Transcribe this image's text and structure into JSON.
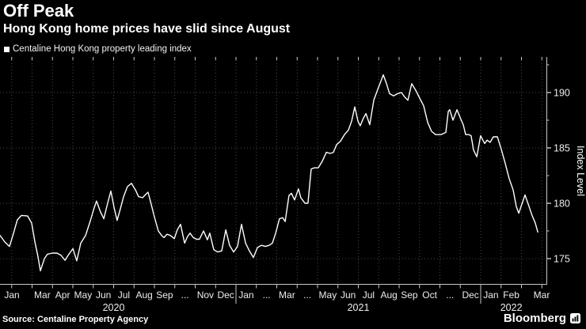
{
  "header": {
    "title": "Off Peak",
    "subtitle": "Hong Kong home prices have slid since August",
    "legend": {
      "marker_color": "#ffffff",
      "label": "Centaline Hong Kong property leading index"
    }
  },
  "footer": {
    "source": "Source: Centaline Property Agency",
    "brand": "Bloomberg",
    "brand_icon": "bar-chart-icon"
  },
  "colors": {
    "background": "#000000",
    "line": "#ffffff",
    "grid": "#4a4a4a",
    "axis": "#c8c8c8",
    "tick_label": "#ededed",
    "text": "#ffffff"
  },
  "chart_data": {
    "type": "line",
    "title": "Centaline Hong Kong property leading index",
    "xlabel": "",
    "ylabel": "Index Level",
    "x_unit": "months_since_Jan_2020_fractional",
    "xlim_months": [
      0,
      27
    ],
    "ylim": [
      172.7,
      193.2
    ],
    "y_ticks": [
      175,
      180,
      185,
      190
    ],
    "y_minor_ticks": [
      177.5,
      182.5,
      187.5,
      192.5
    ],
    "grid": "dotted",
    "legend_position": "top-left",
    "x_tick_labels": [
      "Jan",
      "",
      "Mar",
      "Apr",
      "May",
      "Jun",
      "Jul",
      "Aug",
      "Sep",
      "...",
      "Nov",
      "Dec",
      "Jan",
      "...",
      "Mar",
      "...",
      "May",
      "Jun",
      "Jul",
      "Aug",
      "Sep",
      "Oct",
      "...",
      "Dec",
      "Jan",
      "Feb",
      "Mar"
    ],
    "year_labels": [
      {
        "label": "2020",
        "center_month": 6
      },
      {
        "label": "2021",
        "center_month": 18
      },
      {
        "label": "2022",
        "center_month": 25.5
      }
    ],
    "year_divider_months": [
      12,
      24
    ],
    "series": [
      {
        "name": "Centaline Hong Kong property leading index",
        "color": "#ffffff",
        "points": [
          [
            0,
            177.1
          ],
          [
            0.24,
            176.5
          ],
          [
            0.47,
            176.1
          ],
          [
            0.67,
            177.3
          ],
          [
            0.86,
            178.5
          ],
          [
            1.06,
            178.9
          ],
          [
            1.37,
            178.85
          ],
          [
            1.57,
            178.2
          ],
          [
            1.73,
            176.5
          ],
          [
            1.88,
            175.2
          ],
          [
            2.0,
            173.9
          ],
          [
            2.2,
            175.0
          ],
          [
            2.35,
            175.4
          ],
          [
            2.59,
            175.5
          ],
          [
            2.82,
            175.5
          ],
          [
            3.02,
            175.3
          ],
          [
            3.22,
            174.85
          ],
          [
            3.41,
            175.4
          ],
          [
            3.61,
            175.9
          ],
          [
            3.8,
            174.8
          ],
          [
            4.0,
            176.4
          ],
          [
            4.24,
            177.1
          ],
          [
            4.47,
            178.4
          ],
          [
            4.63,
            179.4
          ],
          [
            4.78,
            180.2
          ],
          [
            4.98,
            179.2
          ],
          [
            5.14,
            178.6
          ],
          [
            5.33,
            180.0
          ],
          [
            5.49,
            181.1
          ],
          [
            5.65,
            179.6
          ],
          [
            5.8,
            178.45
          ],
          [
            5.96,
            179.5
          ],
          [
            6.12,
            180.6
          ],
          [
            6.31,
            181.5
          ],
          [
            6.51,
            181.8
          ],
          [
            6.71,
            181.2
          ],
          [
            6.86,
            180.6
          ],
          [
            7.06,
            180.5
          ],
          [
            7.22,
            180.8
          ],
          [
            7.33,
            181.0
          ],
          [
            7.49,
            179.9
          ],
          [
            7.61,
            179.0
          ],
          [
            7.84,
            177.5
          ],
          [
            8.0,
            177.1
          ],
          [
            8.12,
            176.9
          ],
          [
            8.27,
            177.2
          ],
          [
            8.43,
            177.1
          ],
          [
            8.63,
            176.8
          ],
          [
            8.78,
            177.6
          ],
          [
            8.94,
            178.1
          ],
          [
            9.14,
            176.4
          ],
          [
            9.29,
            177.0
          ],
          [
            9.41,
            177.3
          ],
          [
            9.57,
            176.9
          ],
          [
            9.73,
            176.75
          ],
          [
            9.88,
            176.75
          ],
          [
            10.08,
            177.5
          ],
          [
            10.27,
            176.7
          ],
          [
            10.39,
            177.3
          ],
          [
            10.59,
            175.8
          ],
          [
            10.78,
            175.6
          ],
          [
            10.98,
            175.7
          ],
          [
            11.18,
            177.6
          ],
          [
            11.37,
            176.2
          ],
          [
            11.57,
            175.6
          ],
          [
            11.76,
            176.1
          ],
          [
            11.96,
            178.1
          ],
          [
            12.16,
            176.4
          ],
          [
            12.35,
            175.7
          ],
          [
            12.55,
            175.1
          ],
          [
            12.75,
            176.0
          ],
          [
            12.94,
            176.2
          ],
          [
            13.14,
            176.1
          ],
          [
            13.33,
            176.2
          ],
          [
            13.49,
            176.4
          ],
          [
            13.65,
            177.3
          ],
          [
            13.84,
            178.6
          ],
          [
            14.0,
            178.7
          ],
          [
            14.12,
            178.35
          ],
          [
            14.31,
            180.7
          ],
          [
            14.43,
            180.9
          ],
          [
            14.59,
            180.3
          ],
          [
            14.78,
            181.3
          ],
          [
            14.9,
            180.5
          ],
          [
            15.1,
            180.0
          ],
          [
            15.25,
            180.0
          ],
          [
            15.41,
            183.1
          ],
          [
            15.57,
            183.2
          ],
          [
            15.76,
            183.2
          ],
          [
            15.96,
            183.8
          ],
          [
            16.16,
            184.6
          ],
          [
            16.35,
            184.5
          ],
          [
            16.51,
            184.6
          ],
          [
            16.67,
            185.3
          ],
          [
            16.86,
            185.6
          ],
          [
            17.06,
            186.2
          ],
          [
            17.25,
            186.6
          ],
          [
            17.41,
            187.4
          ],
          [
            17.57,
            188.7
          ],
          [
            17.73,
            187.4
          ],
          [
            17.84,
            187.0
          ],
          [
            18.0,
            187.7
          ],
          [
            18.12,
            188.1
          ],
          [
            18.31,
            187.1
          ],
          [
            18.51,
            189.3
          ],
          [
            18.71,
            190.3
          ],
          [
            18.86,
            191.0
          ],
          [
            18.98,
            191.6
          ],
          [
            19.14,
            190.8
          ],
          [
            19.29,
            189.9
          ],
          [
            19.49,
            189.7
          ],
          [
            19.69,
            189.9
          ],
          [
            19.88,
            190.0
          ],
          [
            20.04,
            189.6
          ],
          [
            20.2,
            189.3
          ],
          [
            20.39,
            190.8
          ],
          [
            20.59,
            190.2
          ],
          [
            20.78,
            189.5
          ],
          [
            20.98,
            188.8
          ],
          [
            21.18,
            187.3
          ],
          [
            21.37,
            186.5
          ],
          [
            21.57,
            186.2
          ],
          [
            21.84,
            186.2
          ],
          [
            22.08,
            186.4
          ],
          [
            22.2,
            188.3
          ],
          [
            22.27,
            188.45
          ],
          [
            22.43,
            187.5
          ],
          [
            22.63,
            188.45
          ],
          [
            22.82,
            187.6
          ],
          [
            22.94,
            187.1
          ],
          [
            23.06,
            186.2
          ],
          [
            23.22,
            186.2
          ],
          [
            23.33,
            186.1
          ],
          [
            23.45,
            184.8
          ],
          [
            23.61,
            184.2
          ],
          [
            23.8,
            186.1
          ],
          [
            24.0,
            185.4
          ],
          [
            24.12,
            185.7
          ],
          [
            24.27,
            185.5
          ],
          [
            24.43,
            186.0
          ],
          [
            24.63,
            186.0
          ],
          [
            24.82,
            184.9
          ],
          [
            25.02,
            183.6
          ],
          [
            25.22,
            182.2
          ],
          [
            25.41,
            181.2
          ],
          [
            25.57,
            179.7
          ],
          [
            25.69,
            179.1
          ],
          [
            25.84,
            179.9
          ],
          [
            26.0,
            180.75
          ],
          [
            26.2,
            179.7
          ],
          [
            26.35,
            178.9
          ],
          [
            26.51,
            178.2
          ],
          [
            26.63,
            177.4
          ]
        ]
      }
    ]
  }
}
